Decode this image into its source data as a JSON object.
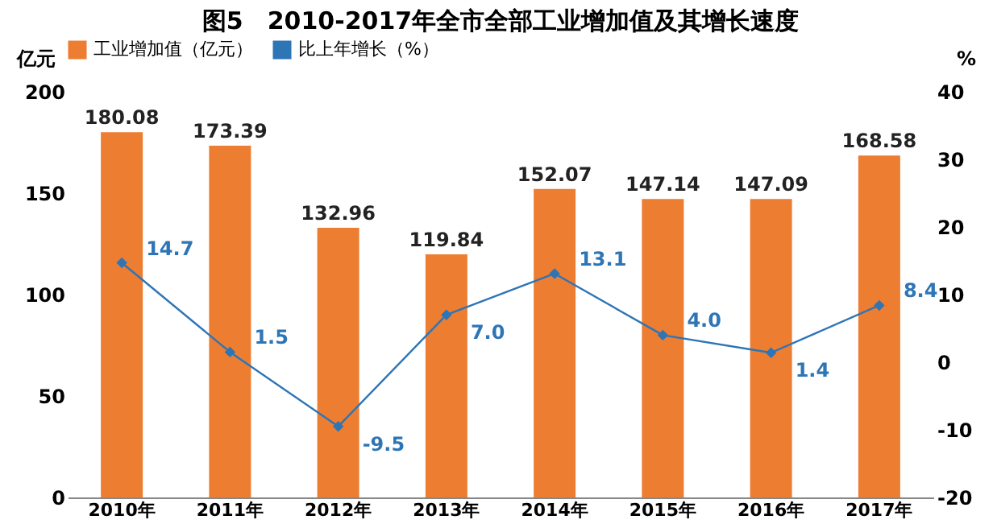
{
  "chart_data": {
    "type": "bar",
    "title": "图5　2010-2017年全市全部工业增加值及其增长速度",
    "categories": [
      "2010年",
      "2011年",
      "2012年",
      "2013年",
      "2014年",
      "2015年",
      "2016年",
      "2017年"
    ],
    "series": [
      {
        "name": "工业增加值（亿元）",
        "color": "#ed7d31",
        "values": [
          180.08,
          173.39,
          132.96,
          119.84,
          152.07,
          147.14,
          147.09,
          168.58
        ]
      },
      {
        "name": "比上年增长（%）",
        "type": "line",
        "axis": "y2",
        "color": "#2e75b6",
        "values": [
          14.7,
          1.5,
          -9.5,
          7.0,
          13.1,
          4.0,
          1.4,
          8.4
        ],
        "value_labels": [
          "14.7",
          "1.5",
          "-9.5",
          "7.0",
          "13.1",
          "4.0",
          "1.4",
          "8.4"
        ]
      }
    ],
    "ylabel": "亿元",
    "y2label": "%",
    "ylim": [
      0,
      200
    ],
    "yticks": [
      0,
      50,
      100,
      150,
      200
    ],
    "y2lim": [
      -20,
      40
    ],
    "y2ticks": [
      -20,
      -10,
      0,
      10,
      20,
      30,
      40
    ],
    "data_labels": true,
    "grid": false,
    "legend": "top",
    "marker": "diamond",
    "line_style": "solid"
  }
}
